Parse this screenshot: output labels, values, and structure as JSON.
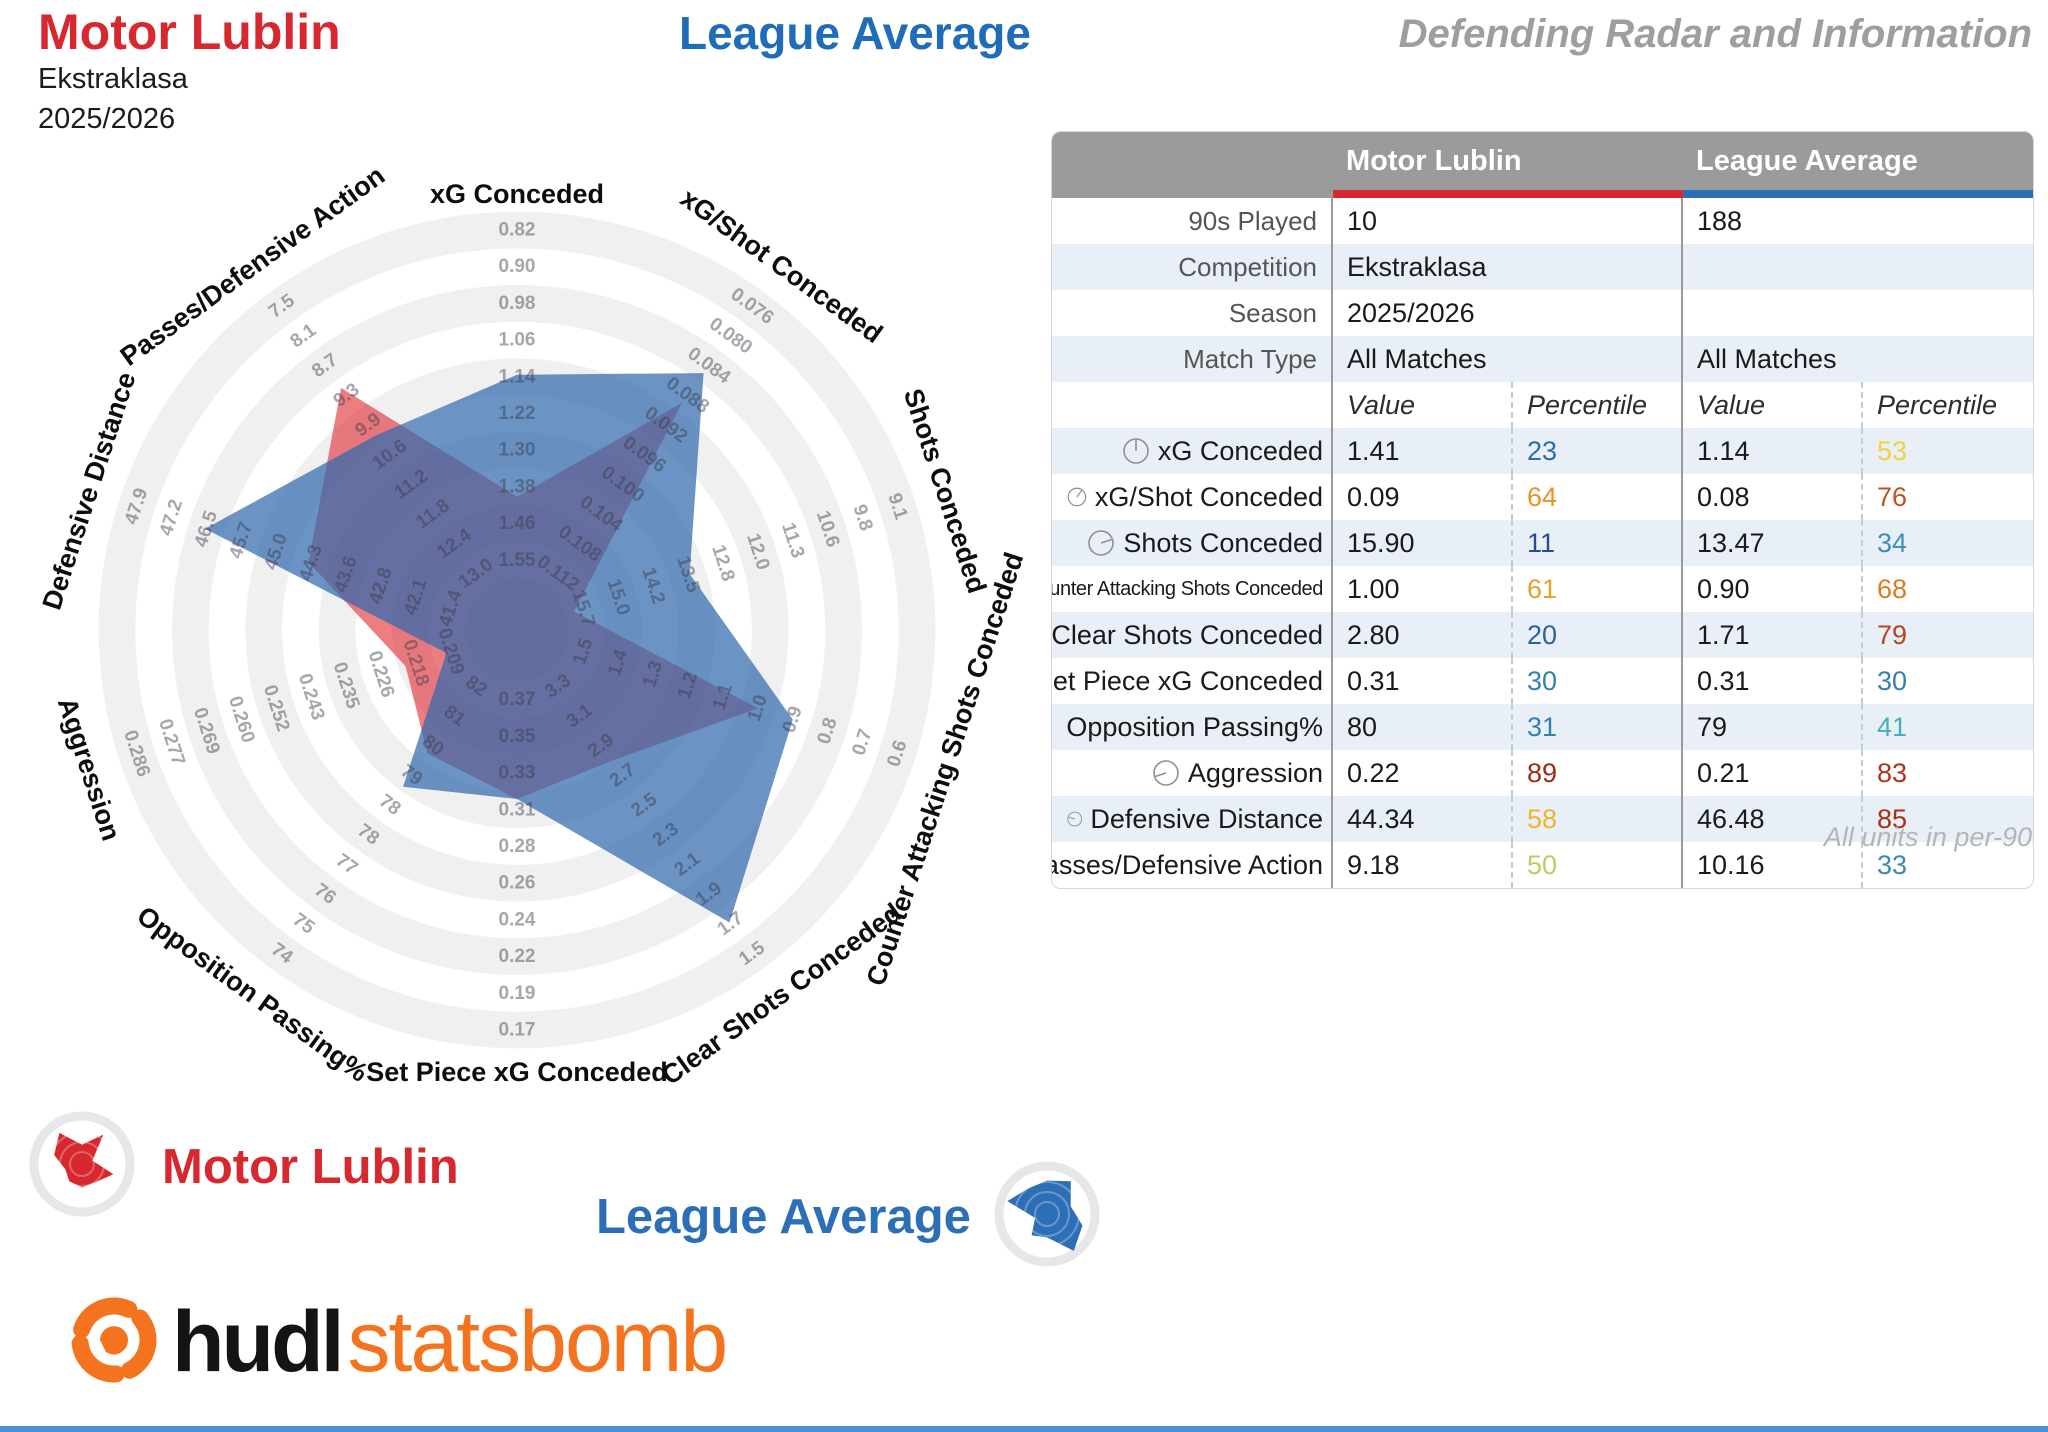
{
  "header": {
    "team": "Motor Lublin",
    "competition": "Ekstraklasa",
    "season": "2025/2026",
    "comparison": "League Average",
    "title": "Defending Radar and Information"
  },
  "colors": {
    "team_red": "#d7282f",
    "league_blue": "#2d6fb7",
    "radar_red_fill": "#e02f35",
    "radar_blue_fill": "#3269ad",
    "ring_gray": "#f0f0f1",
    "brand_orange": "#f4731f"
  },
  "chart_data": {
    "type": "radar",
    "title": "Defending Radar",
    "rings": 10,
    "axes": [
      {
        "label": "xG Conceded",
        "ticks": [
          "0.82",
          "0.90",
          "0.98",
          "1.06",
          "1.14",
          "1.22",
          "1.30",
          "1.38",
          "1.46",
          "1.55"
        ]
      },
      {
        "label": "xG/Shot Conceded",
        "ticks": [
          "0.076",
          "0.080",
          "0.084",
          "0.088",
          "0.092",
          "0.096",
          "0.100",
          "0.104",
          "0.108",
          "0.112"
        ]
      },
      {
        "label": "Shots Conceded",
        "ticks": [
          "9.1",
          "9.8",
          "10.6",
          "11.3",
          "12.0",
          "12.8",
          "13.5",
          "14.2",
          "15.0",
          "15.7"
        ]
      },
      {
        "label": "Counter Attacking Shots Conceded",
        "ticks": [
          "0.6",
          "0.7",
          "0.8",
          "0.9",
          "1.0",
          "1.1",
          "1.2",
          "1.3",
          "1.4",
          "1.5"
        ]
      },
      {
        "label": "Clear Shots Conceded",
        "ticks": [
          "1.5",
          "1.7",
          "1.9",
          "2.1",
          "2.3",
          "2.5",
          "2.7",
          "2.9",
          "3.1",
          "3.3"
        ]
      },
      {
        "label": "Set Piece xG Conceded",
        "ticks": [
          "0.17",
          "0.19",
          "0.22",
          "0.24",
          "0.26",
          "0.28",
          "0.31",
          "0.33",
          "0.35",
          "0.37"
        ]
      },
      {
        "label": "Opposition Passing%",
        "ticks": [
          "74",
          "75",
          "76",
          "77",
          "78",
          "78",
          "79",
          "80",
          "81",
          "82"
        ]
      },
      {
        "label": "Aggression",
        "ticks": [
          "0.286",
          "0.277",
          "0.269",
          "0.260",
          "0.252",
          "0.243",
          "0.235",
          "0.226",
          "0.218",
          "0.209"
        ]
      },
      {
        "label": "Defensive Distance",
        "ticks": [
          "47.9",
          "47.2",
          "46.5",
          "45.7",
          "45.0",
          "44.3",
          "43.6",
          "42.8",
          "42.1",
          "41.4"
        ]
      },
      {
        "label": "Passes/Defensive Action",
        "ticks": [
          "7.5",
          "8.1",
          "8.7",
          "9.3",
          "9.9",
          "10.6",
          "11.2",
          "11.8",
          "12.4",
          "13.0"
        ]
      }
    ],
    "series": [
      {
        "name": "Motor Lublin",
        "values": [
          1.41,
          0.089,
          15.9,
          1.0,
          2.8,
          0.31,
          80,
          0.22,
          44.34,
          9.18
        ]
      },
      {
        "name": "League Average",
        "values": [
          1.14,
          0.085,
          13.47,
          0.9,
          1.71,
          0.31,
          79,
          0.21,
          46.48,
          10.16
        ]
      }
    ]
  },
  "table": {
    "col_headers": [
      "Motor Lublin",
      "League Average"
    ],
    "meta_rows": [
      {
        "label": "90s Played",
        "ml": "10",
        "la": "188"
      },
      {
        "label": "Competition",
        "ml": "Ekstraklasa",
        "la": ""
      },
      {
        "label": "Season",
        "ml": "2025/2026",
        "la": ""
      },
      {
        "label": "Match Type",
        "ml": "All Matches",
        "la": "All Matches"
      }
    ],
    "sub_headers": {
      "value": "Value",
      "percentile": "Percentile"
    },
    "stat_rows": [
      {
        "label": "xG Conceded",
        "ml_value": "1.41",
        "ml_pct": "23",
        "ml_pct_color": "#2d6da4",
        "la_value": "1.14",
        "la_pct": "53",
        "la_pct_color": "#eed53d"
      },
      {
        "label": "xG/Shot Conceded",
        "ml_value": "0.09",
        "ml_pct": "64",
        "ml_pct_color": "#e69325",
        "la_value": "0.08",
        "la_pct": "76",
        "la_pct_color": "#c3511d"
      },
      {
        "label": "Shots Conceded",
        "ml_value": "15.90",
        "ml_pct": "11",
        "ml_pct_color": "#2b4a8b",
        "la_value": "13.47",
        "la_pct": "34",
        "la_pct_color": "#3d90b2"
      },
      {
        "label": "Counter Attacking Shots Conceded",
        "ml_value": "1.00",
        "ml_pct": "61",
        "ml_pct_color": "#e9a029",
        "la_value": "0.90",
        "la_pct": "68",
        "la_pct_color": "#dd7b1f"
      },
      {
        "label": "Clear Shots Conceded",
        "ml_value": "2.80",
        "ml_pct": "20",
        "ml_pct_color": "#2a629c",
        "la_value": "1.71",
        "la_pct": "79",
        "la_pct_color": "#b8441c"
      },
      {
        "label": "Set Piece xG Conceded",
        "ml_value": "0.31",
        "ml_pct": "30",
        "ml_pct_color": "#3381ad",
        "la_value": "0.31",
        "la_pct": "30",
        "la_pct_color": "#3381ad"
      },
      {
        "label": "Opposition Passing%",
        "ml_value": "80",
        "ml_pct": "31",
        "ml_pct_color": "#3381ad",
        "la_value": "79",
        "la_pct": "41",
        "la_pct_color": "#45b0bc"
      },
      {
        "label": "Aggression",
        "ml_value": "0.22",
        "ml_pct": "89",
        "ml_pct_color": "#a22a14",
        "la_value": "0.21",
        "la_pct": "83",
        "la_pct_color": "#ac3418"
      },
      {
        "label": "Defensive Distance",
        "ml_value": "44.34",
        "ml_pct": "58",
        "ml_pct_color": "#edb52e",
        "la_value": "46.48",
        "la_pct": "85",
        "la_pct_color": "#a93016"
      },
      {
        "label": "Passes/Defensive Action",
        "ml_value": "9.18",
        "ml_pct": "50",
        "ml_pct_color": "#b9cf5f",
        "la_value": "10.16",
        "la_pct": "33",
        "la_pct_color": "#3a8bb0"
      }
    ],
    "footnote": "All units in per-90"
  },
  "legend": {
    "team": "Motor Lublin",
    "league": "League Average"
  },
  "branding": {
    "hudl": "hudl",
    "statsbomb": "statsbomb"
  }
}
